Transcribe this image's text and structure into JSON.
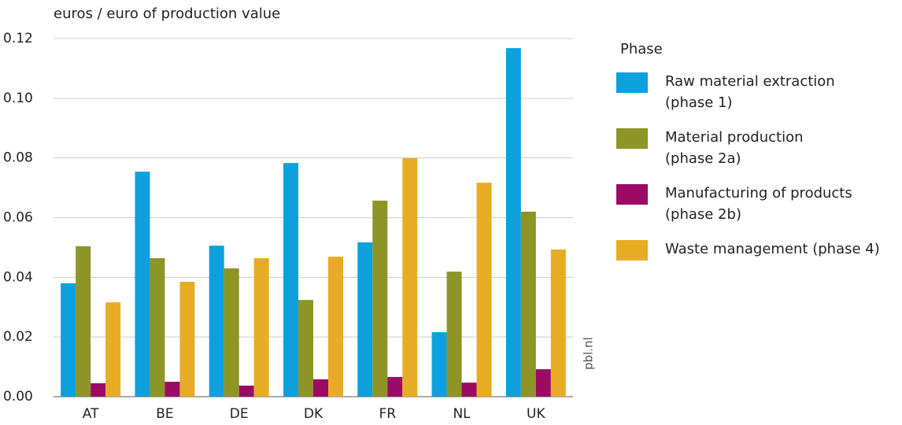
{
  "chart_data": {
    "type": "bar",
    "title": "euros / euro of production value",
    "legend_title": "Phase",
    "source": "pbl.nl",
    "categories": [
      "AT",
      "BE",
      "DE",
      "DK",
      "FR",
      "NL",
      "UK"
    ],
    "series": [
      {
        "name": "Raw material extraction (phase 1)",
        "color": "#0ea0dc",
        "values": [
          0.038,
          0.0754,
          0.0506,
          0.0783,
          0.0517,
          0.0216,
          0.1168
        ]
      },
      {
        "name": "Material production (phase 2a)",
        "color": "#8c9526",
        "values": [
          0.0504,
          0.0464,
          0.043,
          0.0324,
          0.0657,
          0.0419,
          0.062
        ]
      },
      {
        "name": "Manufacturing of products (phase 2b)",
        "color": "#9b0a65",
        "values": [
          0.0045,
          0.005,
          0.0037,
          0.0058,
          0.0066,
          0.0047,
          0.0092
        ]
      },
      {
        "name": "Waste management (phase 4)",
        "color": "#e8ac24",
        "values": [
          0.0316,
          0.0385,
          0.0464,
          0.0469,
          0.0799,
          0.0717,
          0.0493
        ]
      }
    ],
    "ylim": [
      0,
      0.12
    ],
    "yticks": [
      {
        "value": 0,
        "label": "0.00"
      },
      {
        "value": 0.02,
        "label": "0.02"
      },
      {
        "value": 0.04,
        "label": "0.04"
      },
      {
        "value": 0.06,
        "label": "0.06"
      },
      {
        "value": 0.08,
        "label": "0.08"
      },
      {
        "value": 0.1,
        "label": "0.10"
      },
      {
        "value": 0.12,
        "label": "0.12"
      }
    ],
    "grid": true,
    "legend": "right"
  }
}
